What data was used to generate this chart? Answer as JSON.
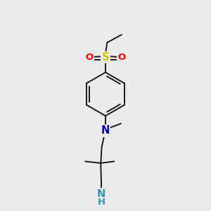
{
  "bg_color": "#ebebeb",
  "bond_color": "#1a1a1a",
  "bond_width": 1.4,
  "atom_colors": {
    "S": "#cccc00",
    "O": "#ff0000",
    "N_chain": "#0000cc",
    "N_amine": "#3399aa",
    "C": "#1a1a1a",
    "H": "#1a1a1a"
  },
  "font_size_atom": 9.5,
  "font_size_small": 9
}
